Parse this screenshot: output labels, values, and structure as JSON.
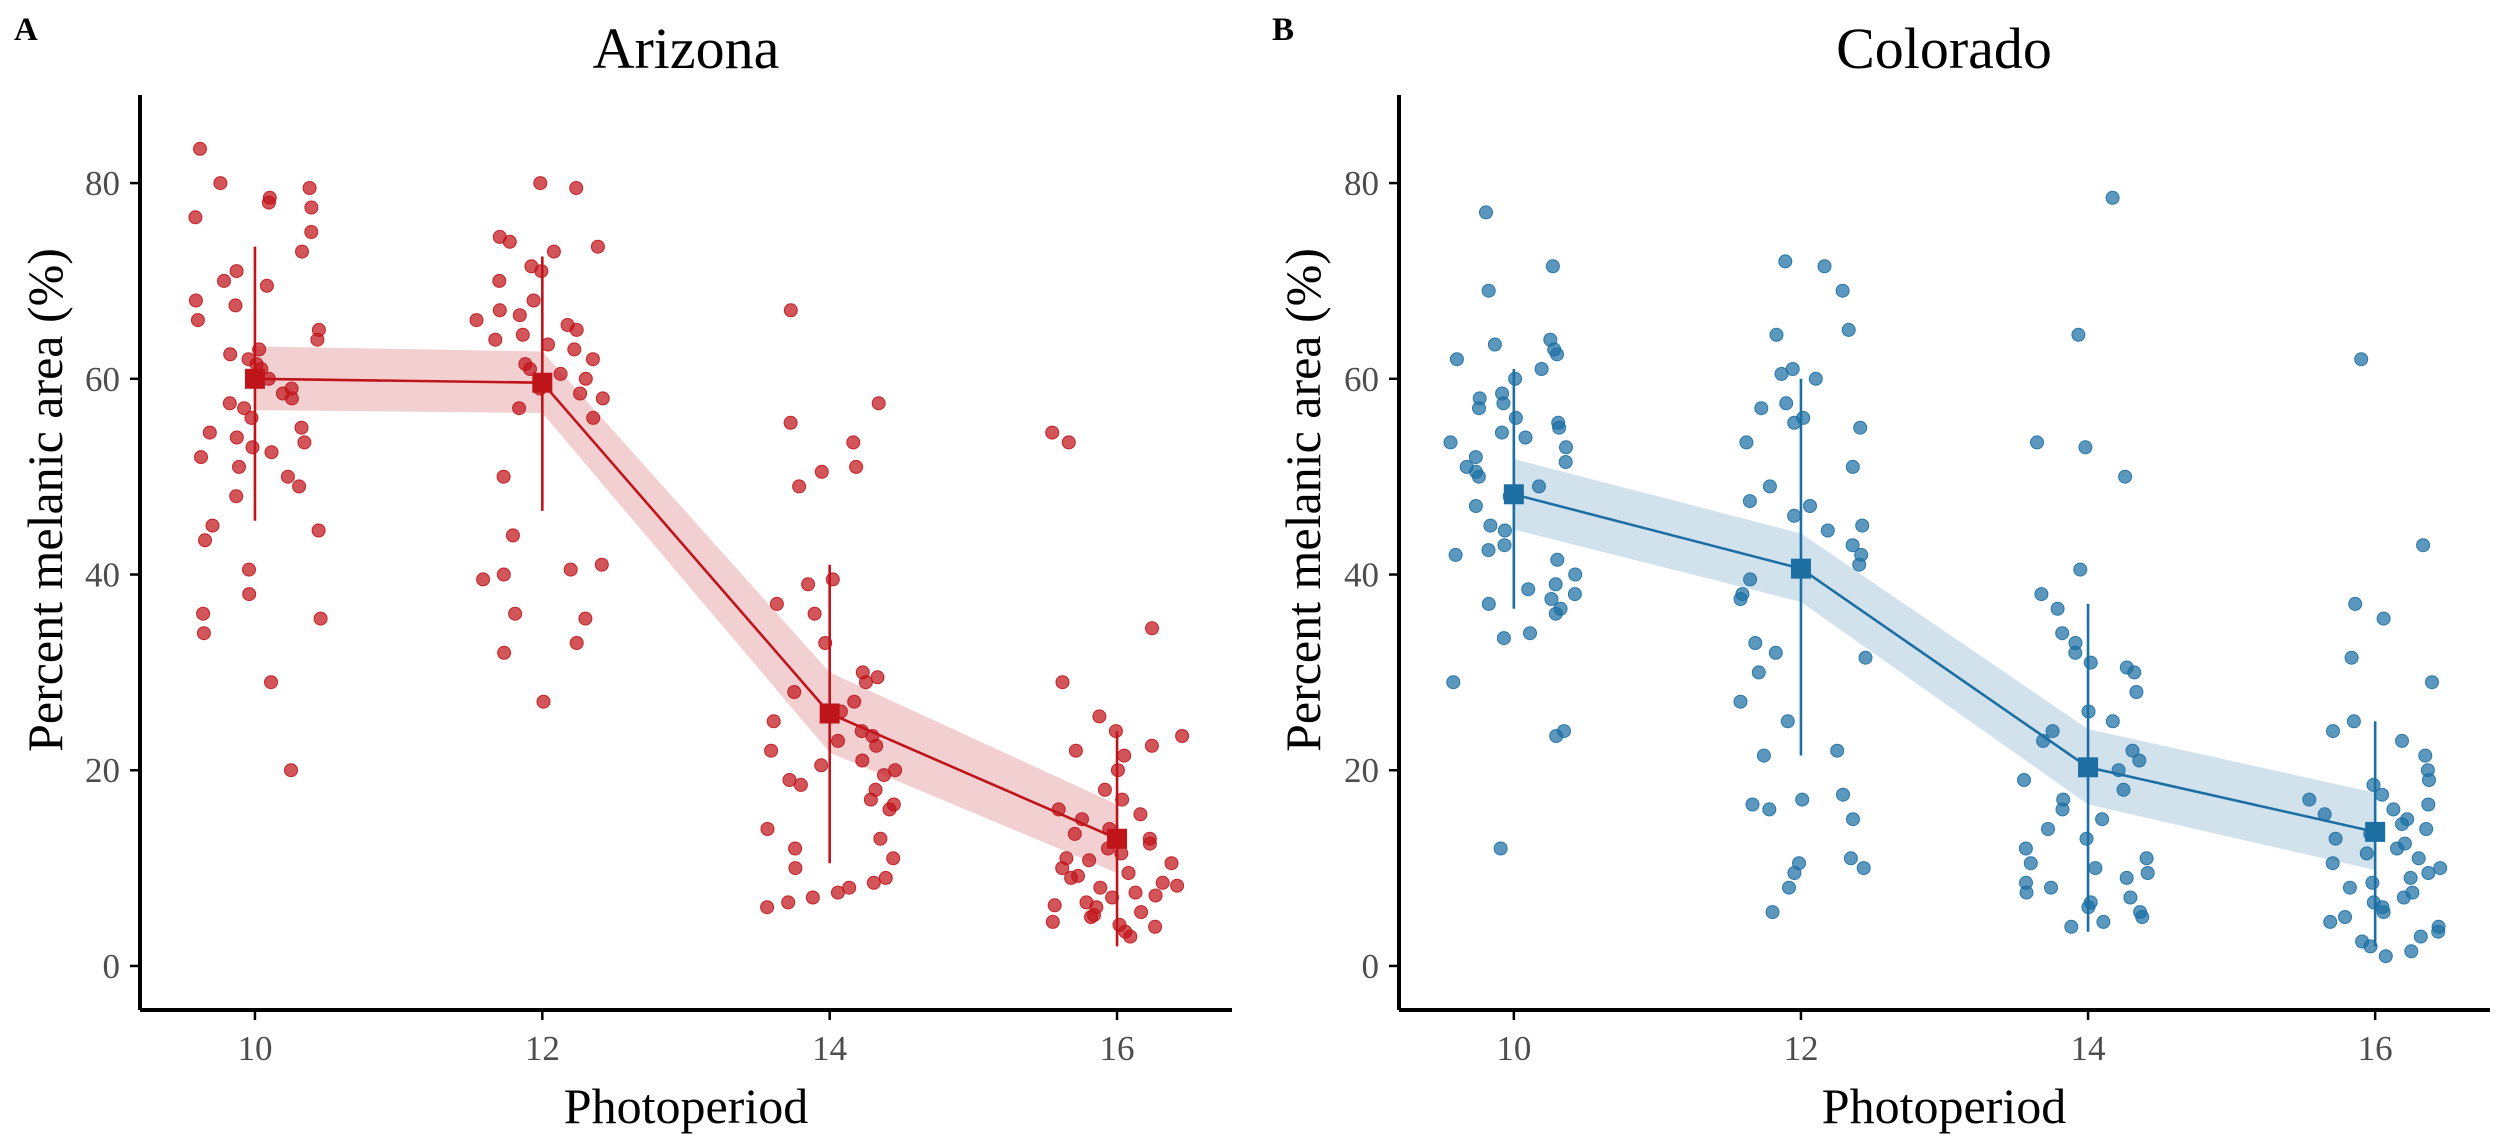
{
  "chart_data": [
    {
      "panel": "A",
      "title": "Arizona",
      "type": "scatter",
      "xlabel": "Photoperiod",
      "ylabel": "Percent melanic area (%)",
      "xlim": [
        9.2,
        16.8
      ],
      "ylim": [
        -4.5,
        89
      ],
      "xticks": [
        10,
        12,
        14,
        16
      ],
      "yticks": [
        0,
        20,
        40,
        60,
        80
      ],
      "grid": false,
      "color": "#c0141b",
      "mean_line": {
        "x": [
          10,
          12,
          14,
          16
        ],
        "mean": [
          60.0,
          59.6,
          25.8,
          13.0
        ],
        "lower": [
          45.5,
          46.5,
          10.5,
          2.0
        ],
        "upper": [
          73.5,
          72.5,
          41.0,
          24.0
        ],
        "ci_low": [
          56.8,
          56.5,
          21.8,
          9.5
        ],
        "ci_high": [
          63.3,
          62.8,
          30.0,
          16.5
        ]
      },
      "points": [
        {
          "group": 10,
          "y": [
            80,
            79.5,
            78.5,
            77.5,
            76.5,
            73,
            71,
            68,
            66,
            65,
            64,
            63,
            62,
            61,
            60,
            59,
            58,
            57,
            56,
            55,
            54,
            53,
            52,
            50,
            49,
            48,
            45,
            44.5,
            43.5,
            40.5,
            38,
            36,
            34,
            29,
            20,
            83.5,
            78,
            75,
            70,
            69.5,
            67.5,
            62.5,
            61.5,
            58.5,
            57.5,
            54.5,
            53.5,
            52.5,
            51,
            35.5
          ]
        },
        {
          "group": 12,
          "y": [
            80,
            74.5,
            74,
            73.5,
            73,
            71,
            70,
            68,
            67,
            66,
            65.5,
            65,
            64,
            63.5,
            63,
            62,
            61.5,
            61,
            60.5,
            60,
            59.5,
            59,
            58.5,
            58,
            57,
            56,
            50,
            44,
            41,
            40.5,
            40,
            39.5,
            36,
            35.5,
            33,
            32,
            27,
            79.5,
            71.5,
            66.5,
            64.5
          ]
        },
        {
          "group": 14,
          "y": [
            67,
            57.5,
            55.5,
            53.5,
            51,
            50.5,
            49,
            39.5,
            39,
            37,
            36,
            33,
            30,
            29.5,
            29,
            28,
            27,
            26,
            25,
            24,
            23.5,
            23,
            22.5,
            22,
            21,
            20.5,
            20,
            19.5,
            19,
            18.5,
            18,
            17,
            16.5,
            16,
            14,
            13,
            12,
            11,
            10,
            9,
            8.5,
            8,
            7.5,
            7,
            6.5,
            6
          ]
        },
        {
          "group": 16,
          "y": [
            54.5,
            53.5,
            34.5,
            29,
            25.5,
            24,
            23.5,
            22,
            21.5,
            20,
            18,
            17,
            16,
            15.5,
            15,
            14,
            13.5,
            13,
            12.5,
            12,
            11,
            10.5,
            10,
            9.5,
            9,
            8.5,
            8,
            7.5,
            7,
            6.5,
            6,
            5.5,
            5,
            4.5,
            4,
            3.5,
            3,
            22.5,
            11.5,
            10.8,
            9.2,
            8.2,
            7.2,
            6.2,
            5.2,
            4.2
          ]
        }
      ]
    },
    {
      "panel": "B",
      "title": "Colorado",
      "type": "scatter",
      "xlabel": "Photoperiod",
      "ylabel": "Percent melanic area (%)",
      "xlim": [
        9.2,
        16.8
      ],
      "ylim": [
        -4.5,
        89
      ],
      "xticks": [
        10,
        12,
        14,
        16
      ],
      "yticks": [
        0,
        20,
        40,
        60,
        80
      ],
      "grid": false,
      "color": "#1d6fa3",
      "mean_line": {
        "x": [
          10,
          12,
          14,
          16
        ],
        "mean": [
          48.2,
          40.6,
          20.3,
          13.7
        ],
        "lower": [
          36.5,
          21.5,
          3.5,
          2.0
        ],
        "upper": [
          61.0,
          60.0,
          37.0,
          25.0
        ],
        "ci_low": [
          44.6,
          37.2,
          16.5,
          9.8
        ],
        "ci_high": [
          51.8,
          44.2,
          24.2,
          17.7
        ]
      },
      "points": [
        {
          "group": 10,
          "y": [
            77,
            71.5,
            69,
            64,
            63.5,
            63,
            62.5,
            62,
            61,
            60,
            58.5,
            58,
            57.5,
            57,
            56,
            55.5,
            55,
            54.5,
            54,
            53.5,
            53,
            52,
            51.5,
            51,
            50.5,
            50,
            49,
            48,
            47,
            45,
            44.5,
            43,
            42.5,
            42,
            41.5,
            40,
            39,
            38.5,
            38,
            37.5,
            37,
            36.5,
            36,
            34,
            33.5,
            29,
            24,
            23.5,
            12
          ]
        },
        {
          "group": 12,
          "y": [
            72,
            71.5,
            69,
            65,
            64.5,
            61,
            60.5,
            60,
            57.5,
            57,
            56,
            55.5,
            55,
            53.5,
            51,
            49,
            47.5,
            47,
            46,
            45,
            44.5,
            43,
            42,
            41,
            39.5,
            38,
            37.5,
            33,
            32,
            31.5,
            30,
            27,
            25,
            22,
            21.5,
            17.5,
            17,
            16.5,
            16,
            15,
            11,
            10.5,
            10,
            9.5,
            8,
            5.5
          ]
        },
        {
          "group": 14,
          "y": [
            78.5,
            64.5,
            53.5,
            53,
            50,
            40.5,
            38,
            36.5,
            34,
            33,
            32,
            31,
            30.5,
            30,
            28,
            26,
            25,
            24,
            23,
            22,
            21,
            20,
            19,
            18,
            17,
            16,
            15,
            14,
            13,
            12,
            11,
            10.5,
            10,
            9.5,
            9,
            8.5,
            8,
            7.5,
            7,
            6.5,
            6,
            5.5,
            5,
            4.5,
            4
          ]
        },
        {
          "group": 16,
          "y": [
            62,
            43,
            37,
            35.5,
            31.5,
            29,
            25,
            24,
            23,
            21.5,
            20,
            19,
            18.5,
            17.5,
            17,
            16.5,
            16,
            15.5,
            15,
            14.5,
            14,
            13.5,
            13,
            12.5,
            12,
            11.5,
            11,
            10.5,
            10,
            9.5,
            9,
            8.5,
            8,
            7.5,
            7,
            6.5,
            6,
            5.5,
            5,
            4.5,
            4,
            3.5,
            3,
            2.5,
            2,
            1.5,
            1
          ]
        }
      ]
    }
  ]
}
